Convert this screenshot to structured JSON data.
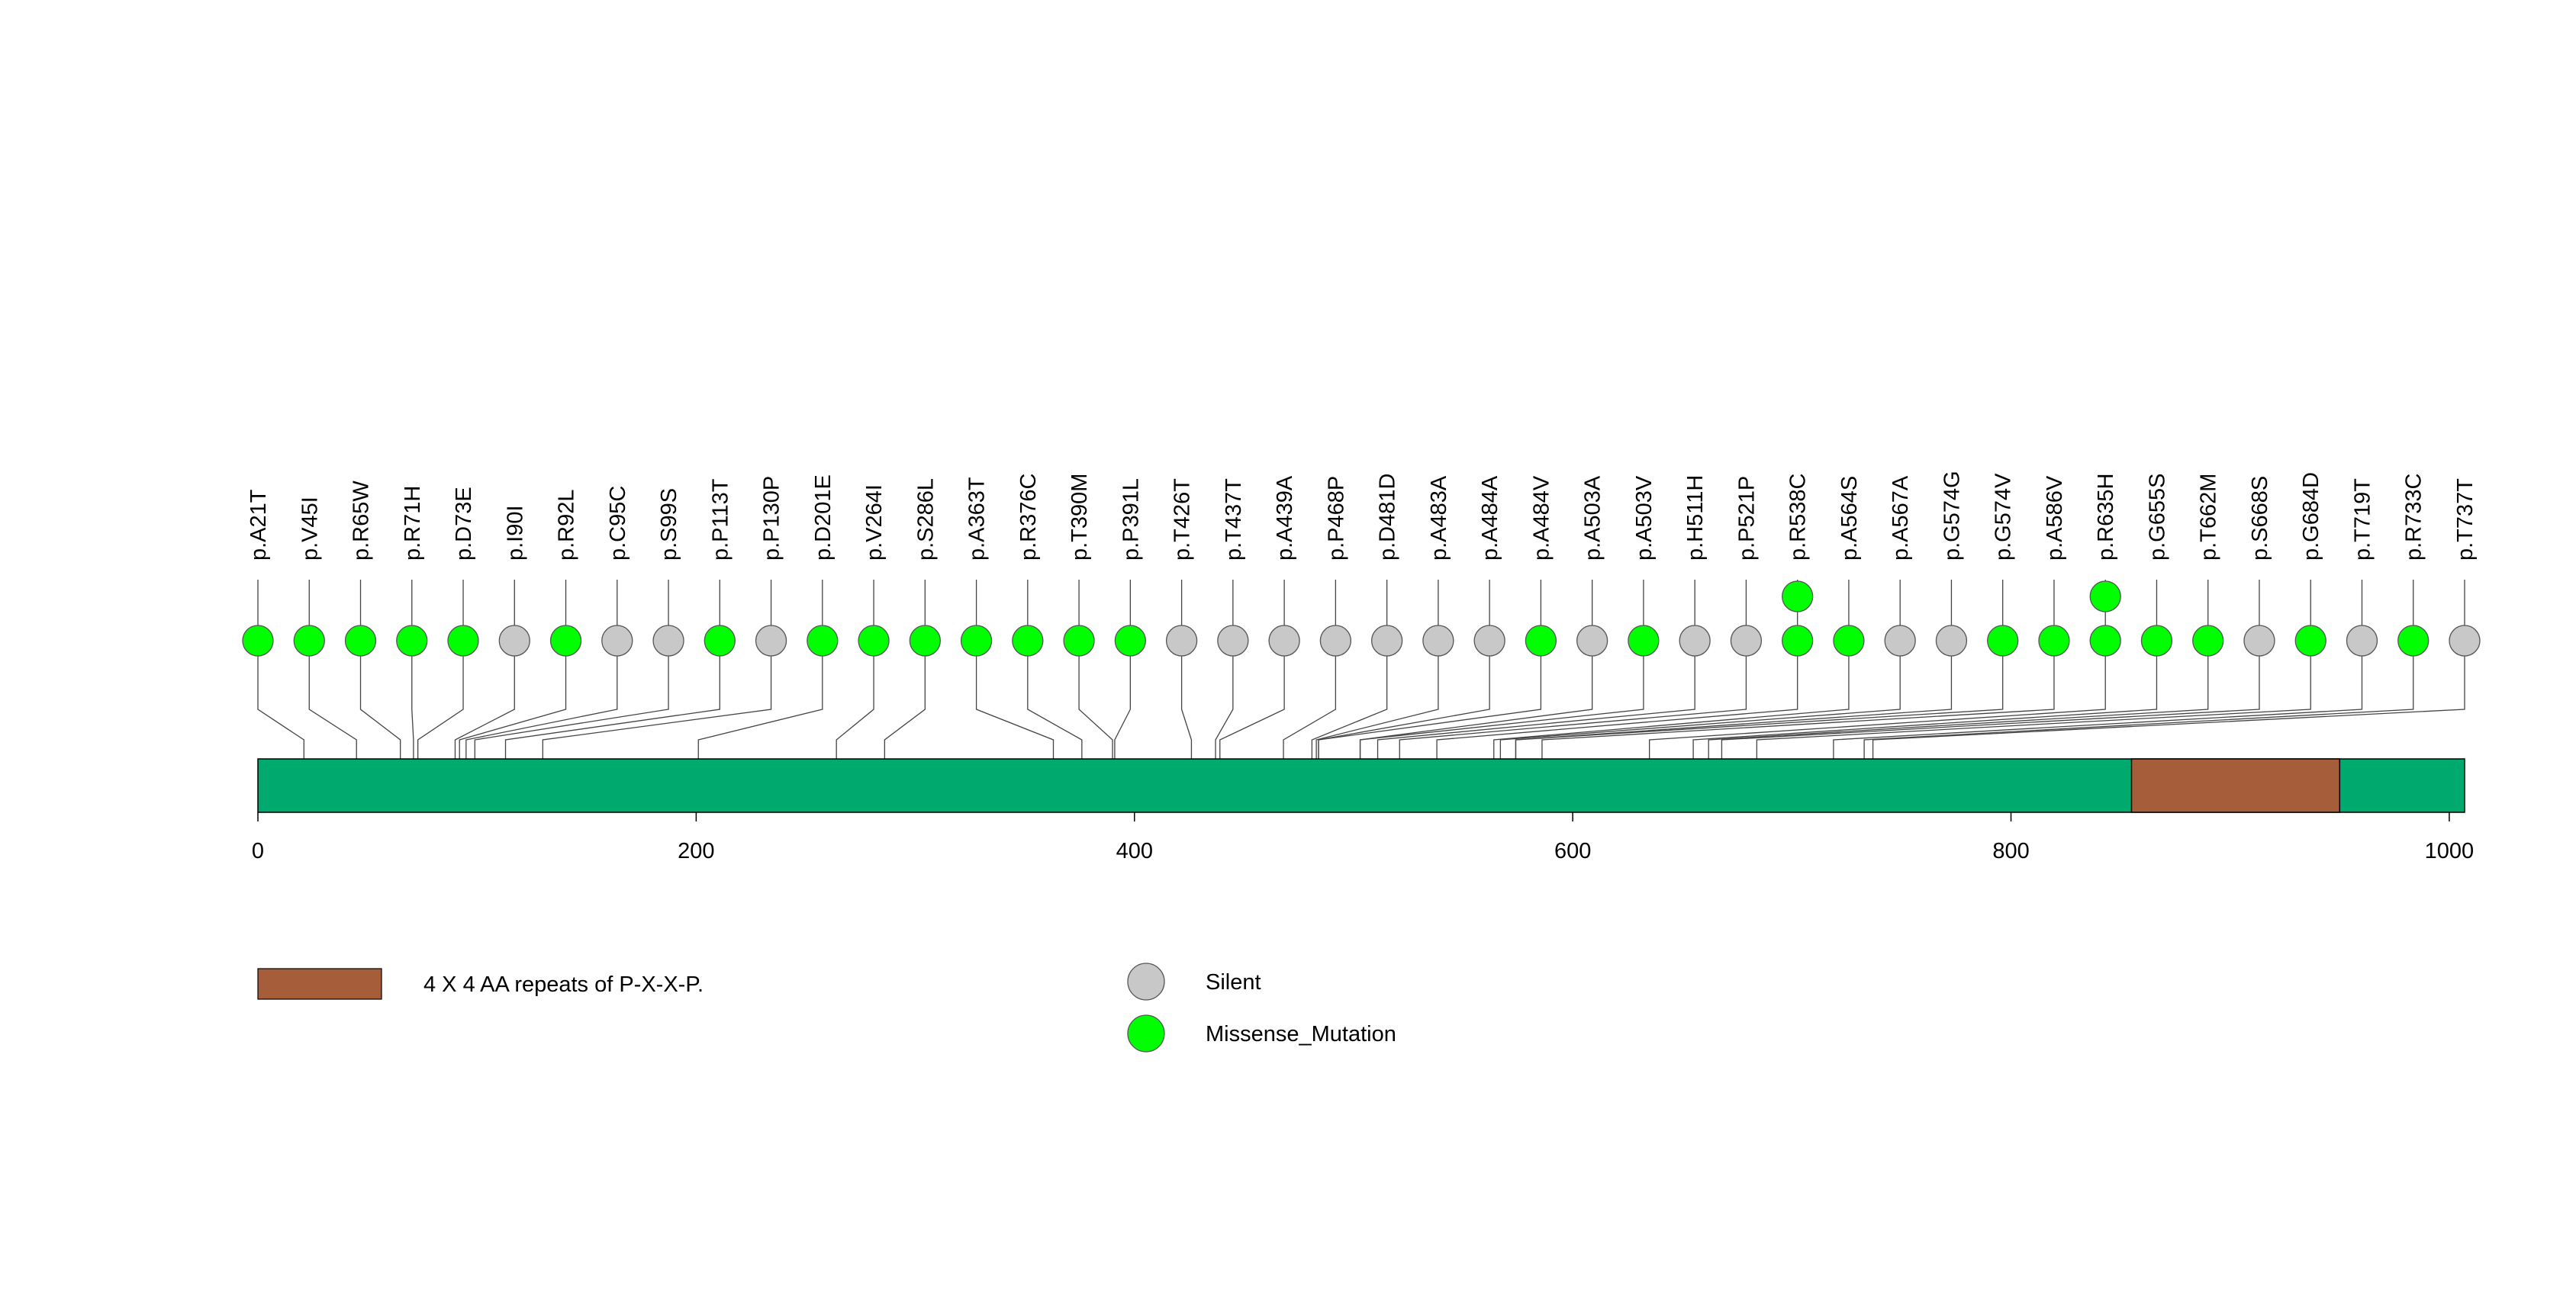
{
  "chart_data": {
    "type": "lollipop",
    "protein": {
      "length": 1007,
      "color": "#00AA6E"
    },
    "domains": [
      {
        "name": "4 X 4 AA repeats of P-X-X-P.",
        "start": 855,
        "end": 950,
        "color": "#A65E3A"
      }
    ],
    "axis": {
      "min": 0,
      "max": 1007,
      "ticks": [
        {
          "value": 0,
          "label": "0"
        },
        {
          "value": 200,
          "label": "200"
        },
        {
          "value": 400,
          "label": "400"
        },
        {
          "value": 600,
          "label": "600"
        },
        {
          "value": 800,
          "label": "800"
        },
        {
          "value": 1000,
          "label": "1000"
        }
      ]
    },
    "mutation_types": [
      {
        "name": "Silent",
        "color": "#C8C8C8"
      },
      {
        "name": "Missense_Mutation",
        "color": "#00FF00"
      }
    ],
    "mutations": [
      {
        "label": "p.A21T",
        "position": 21,
        "type": "Missense_Mutation",
        "count": 1
      },
      {
        "label": "p.V45I",
        "position": 45,
        "type": "Missense_Mutation",
        "count": 1
      },
      {
        "label": "p.R65W",
        "position": 65,
        "type": "Missense_Mutation",
        "count": 1
      },
      {
        "label": "p.R71H",
        "position": 71,
        "type": "Missense_Mutation",
        "count": 1
      },
      {
        "label": "p.D73E",
        "position": 73,
        "type": "Missense_Mutation",
        "count": 1
      },
      {
        "label": "p.I90I",
        "position": 90,
        "type": "Silent",
        "count": 1
      },
      {
        "label": "p.R92L",
        "position": 92,
        "type": "Missense_Mutation",
        "count": 1
      },
      {
        "label": "p.C95C",
        "position": 95,
        "type": "Silent",
        "count": 1
      },
      {
        "label": "p.S99S",
        "position": 99,
        "type": "Silent",
        "count": 1
      },
      {
        "label": "p.P113T",
        "position": 113,
        "type": "Missense_Mutation",
        "count": 1
      },
      {
        "label": "p.P130P",
        "position": 130,
        "type": "Silent",
        "count": 1
      },
      {
        "label": "p.D201E",
        "position": 201,
        "type": "Missense_Mutation",
        "count": 1
      },
      {
        "label": "p.V264I",
        "position": 264,
        "type": "Missense_Mutation",
        "count": 1
      },
      {
        "label": "p.S286L",
        "position": 286,
        "type": "Missense_Mutation",
        "count": 1
      },
      {
        "label": "p.A363T",
        "position": 363,
        "type": "Missense_Mutation",
        "count": 1
      },
      {
        "label": "p.R376C",
        "position": 376,
        "type": "Missense_Mutation",
        "count": 1
      },
      {
        "label": "p.T390M",
        "position": 390,
        "type": "Missense_Mutation",
        "count": 1
      },
      {
        "label": "p.P391L",
        "position": 391,
        "type": "Missense_Mutation",
        "count": 1
      },
      {
        "label": "p.T426T",
        "position": 426,
        "type": "Silent",
        "count": 1
      },
      {
        "label": "p.T437T",
        "position": 437,
        "type": "Silent",
        "count": 1
      },
      {
        "label": "p.A439A",
        "position": 439,
        "type": "Silent",
        "count": 1
      },
      {
        "label": "p.P468P",
        "position": 468,
        "type": "Silent",
        "count": 1
      },
      {
        "label": "p.D481D",
        "position": 481,
        "type": "Silent",
        "count": 1
      },
      {
        "label": "p.A483A",
        "position": 483,
        "type": "Silent",
        "count": 1
      },
      {
        "label": "p.A484A",
        "position": 484,
        "type": "Silent",
        "count": 1
      },
      {
        "label": "p.A484V",
        "position": 484,
        "type": "Missense_Mutation",
        "count": 1
      },
      {
        "label": "p.A503A",
        "position": 503,
        "type": "Silent",
        "count": 1
      },
      {
        "label": "p.A503V",
        "position": 503,
        "type": "Missense_Mutation",
        "count": 1
      },
      {
        "label": "p.H511H",
        "position": 511,
        "type": "Silent",
        "count": 1
      },
      {
        "label": "p.P521P",
        "position": 521,
        "type": "Silent",
        "count": 1
      },
      {
        "label": "p.R538C",
        "position": 538,
        "type": "Missense_Mutation",
        "count": 2
      },
      {
        "label": "p.A564S",
        "position": 564,
        "type": "Missense_Mutation",
        "count": 1
      },
      {
        "label": "p.A567A",
        "position": 567,
        "type": "Silent",
        "count": 1
      },
      {
        "label": "p.G574G",
        "position": 574,
        "type": "Silent",
        "count": 1
      },
      {
        "label": "p.G574V",
        "position": 574,
        "type": "Missense_Mutation",
        "count": 1
      },
      {
        "label": "p.A586V",
        "position": 586,
        "type": "Missense_Mutation",
        "count": 1
      },
      {
        "label": "p.R635H",
        "position": 635,
        "type": "Missense_Mutation",
        "count": 2
      },
      {
        "label": "p.G655S",
        "position": 655,
        "type": "Missense_Mutation",
        "count": 1
      },
      {
        "label": "p.T662M",
        "position": 662,
        "type": "Missense_Mutation",
        "count": 1
      },
      {
        "label": "p.S668S",
        "position": 668,
        "type": "Silent",
        "count": 1
      },
      {
        "label": "p.G684D",
        "position": 684,
        "type": "Missense_Mutation",
        "count": 1
      },
      {
        "label": "p.T719T",
        "position": 719,
        "type": "Silent",
        "count": 1
      },
      {
        "label": "p.R733C",
        "position": 733,
        "type": "Missense_Mutation",
        "count": 1
      },
      {
        "label": "p.T737T",
        "position": 737,
        "type": "Silent",
        "count": 1
      }
    ]
  }
}
